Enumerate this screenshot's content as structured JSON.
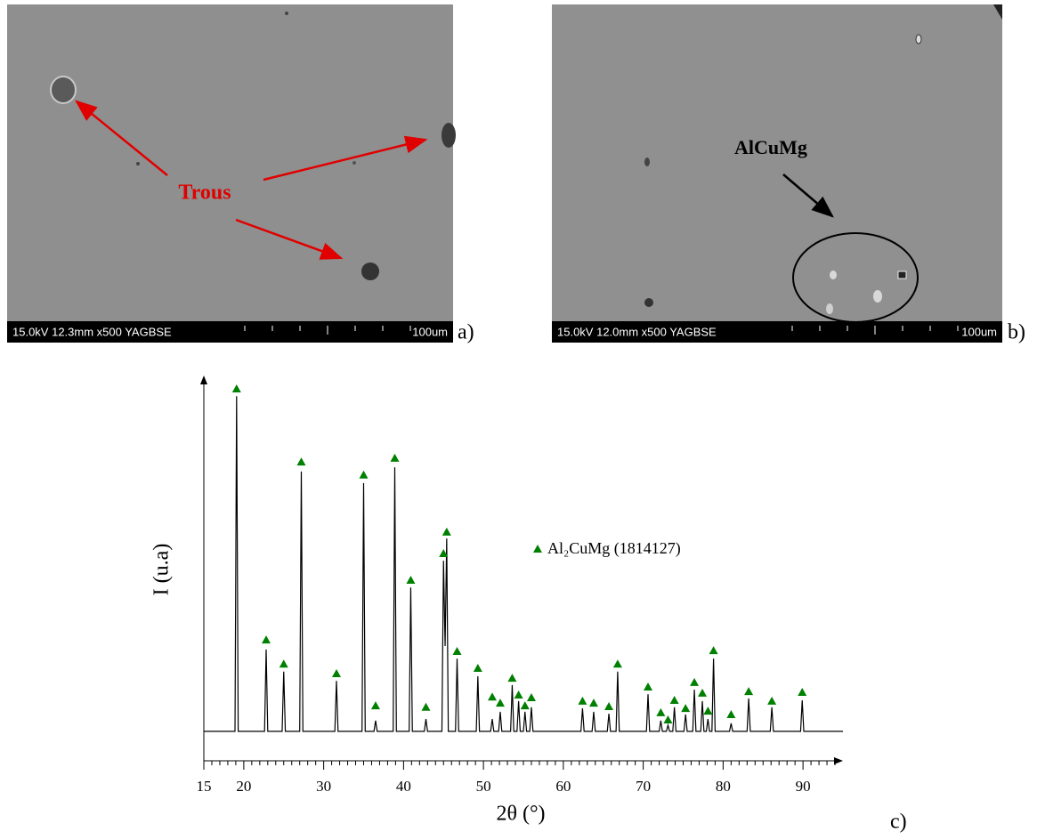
{
  "images": [
    {
      "info": "15.0kV 12.3mm x500 YAGBSE",
      "scale": "100um",
      "label": "a)",
      "annotation": "Trous"
    },
    {
      "info": "15.0kV 12.0mm x500 YAGBSE",
      "scale": "100um",
      "label": "b)",
      "annotation": "AlCuMg"
    }
  ],
  "chart_data": {
    "type": "line",
    "label": "c)",
    "xlabel": "2θ (°)",
    "ylabel": "I (u.a)",
    "xlim": [
      15,
      95
    ],
    "ylim": [
      0,
      100
    ],
    "xticks": [
      15,
      20,
      30,
      40,
      50,
      60,
      70,
      80,
      90
    ],
    "xminorticks": [
      16,
      17,
      18,
      19,
      21,
      22,
      23,
      24,
      25,
      26,
      27,
      28,
      29,
      31,
      32,
      33,
      34,
      35,
      36,
      37,
      38,
      39,
      41,
      42,
      43,
      44,
      45,
      46,
      47,
      48,
      49,
      51,
      52,
      53,
      54,
      55,
      56,
      57,
      58,
      59,
      61,
      62,
      63,
      64,
      65,
      66,
      67,
      68,
      69,
      71,
      72,
      73,
      74,
      75,
      76,
      77,
      78,
      79,
      81,
      82,
      83,
      84,
      85,
      86,
      87,
      88,
      89,
      91,
      92,
      93,
      94
    ],
    "series": [
      {
        "color": "#000000",
        "x": [
          15,
          18.9,
          19.1,
          19.3,
          22.6,
          22.8,
          23.0,
          24.8,
          25.0,
          25.2,
          27.0,
          27.2,
          27.4,
          31.4,
          31.6,
          31.8,
          34.8,
          35.0,
          35.2,
          36.3,
          36.5,
          36.7,
          38.7,
          38.9,
          39.1,
          40.7,
          40.9,
          41.1,
          42.6,
          42.8,
          43.0,
          44.8,
          45.0,
          45.2,
          45.4,
          45.6,
          46.5,
          46.7,
          46.9,
          49.1,
          49.3,
          49.5,
          50.9,
          51.1,
          51.3,
          51.9,
          52.1,
          52.3,
          53.4,
          53.6,
          53.8,
          54.2,
          54.4,
          54.6,
          55.0,
          55.2,
          55.4,
          55.8,
          56.0,
          56.2,
          62.2,
          62.4,
          62.6,
          63.6,
          63.8,
          64.0,
          65.5,
          65.7,
          65.9,
          66.6,
          66.8,
          67.0,
          70.4,
          70.6,
          70.8,
          72.0,
          72.2,
          72.4,
          72.9,
          73.1,
          73.3,
          73.7,
          73.9,
          74.1,
          75.1,
          75.3,
          75.5,
          76.2,
          76.4,
          76.6,
          77.2,
          77.4,
          77.6,
          77.9,
          78.1,
          78.3,
          78.6,
          78.8,
          79.0,
          80.8,
          81.0,
          81.2,
          83.0,
          83.2,
          83.4,
          85.9,
          86.1,
          86.3,
          89.7,
          89.9,
          90.1,
          95
        ],
        "values": [
          7.7,
          7.7,
          95.3,
          7.7,
          7.7,
          29.1,
          7.7,
          7.7,
          23.3,
          7.7,
          7.7,
          75.6,
          7.7,
          7.7,
          20.9,
          7.7,
          7.7,
          72.6,
          7.7,
          7.7,
          10.5,
          7.7,
          7.7,
          76.7,
          7.7,
          7.7,
          45.3,
          7.7,
          7.7,
          10.9,
          7.7,
          7.7,
          52.3,
          30,
          58.1,
          7.7,
          7.7,
          26.7,
          7.7,
          7.7,
          22.1,
          7.7,
          7.7,
          10.9,
          7.7,
          7.7,
          12.8,
          7.7,
          7.7,
          19.8,
          7.7,
          7.7,
          15.6,
          7.7,
          7.7,
          12.8,
          7.7,
          7.7,
          14.0,
          7.7,
          7.7,
          13.7,
          7.7,
          7.7,
          12.8,
          7.7,
          7.7,
          12.3,
          7.7,
          7.7,
          23.3,
          7.7,
          7.7,
          17.4,
          7.7,
          7.7,
          10.5,
          7.7,
          7.7,
          9.3,
          7.7,
          7.7,
          14.0,
          7.7,
          7.7,
          12.1,
          7.7,
          7.7,
          18.6,
          7.7,
          7.7,
          15.6,
          7.7,
          7.7,
          10.9,
          7.7,
          7.7,
          26.7,
          7.7,
          7.7,
          9.8,
          7.7,
          7.7,
          16.3,
          7.7,
          7.7,
          14.0,
          7.7,
          7.7,
          15.8,
          7.7,
          7.7
        ]
      }
    ],
    "markers": {
      "name": "Al₂CuMg (1814127)",
      "color": "#008000",
      "x": [
        19.1,
        22.8,
        25.0,
        27.2,
        31.6,
        35.0,
        36.5,
        38.9,
        40.9,
        42.8,
        45.0,
        45.4,
        46.7,
        49.3,
        51.1,
        52.1,
        53.6,
        54.4,
        55.2,
        56.0,
        62.4,
        63.8,
        65.7,
        66.8,
        70.6,
        72.2,
        73.1,
        73.9,
        75.3,
        76.4,
        77.4,
        78.1,
        78.8,
        81.0,
        83.2,
        86.1,
        89.9
      ],
      "values": [
        97.2,
        31.6,
        25.3,
        78.1,
        22.8,
        74.7,
        14.4,
        79.1,
        47.2,
        14.0,
        54.2,
        59.8,
        28.6,
        24.2,
        16.7,
        15.1,
        21.6,
        17.2,
        14.4,
        16.5,
        15.6,
        15.1,
        14.2,
        25.3,
        19.3,
        12.6,
        10.7,
        15.8,
        13.7,
        20.5,
        17.7,
        13.0,
        28.8,
        12.1,
        18.1,
        15.6,
        17.9
      ]
    }
  }
}
